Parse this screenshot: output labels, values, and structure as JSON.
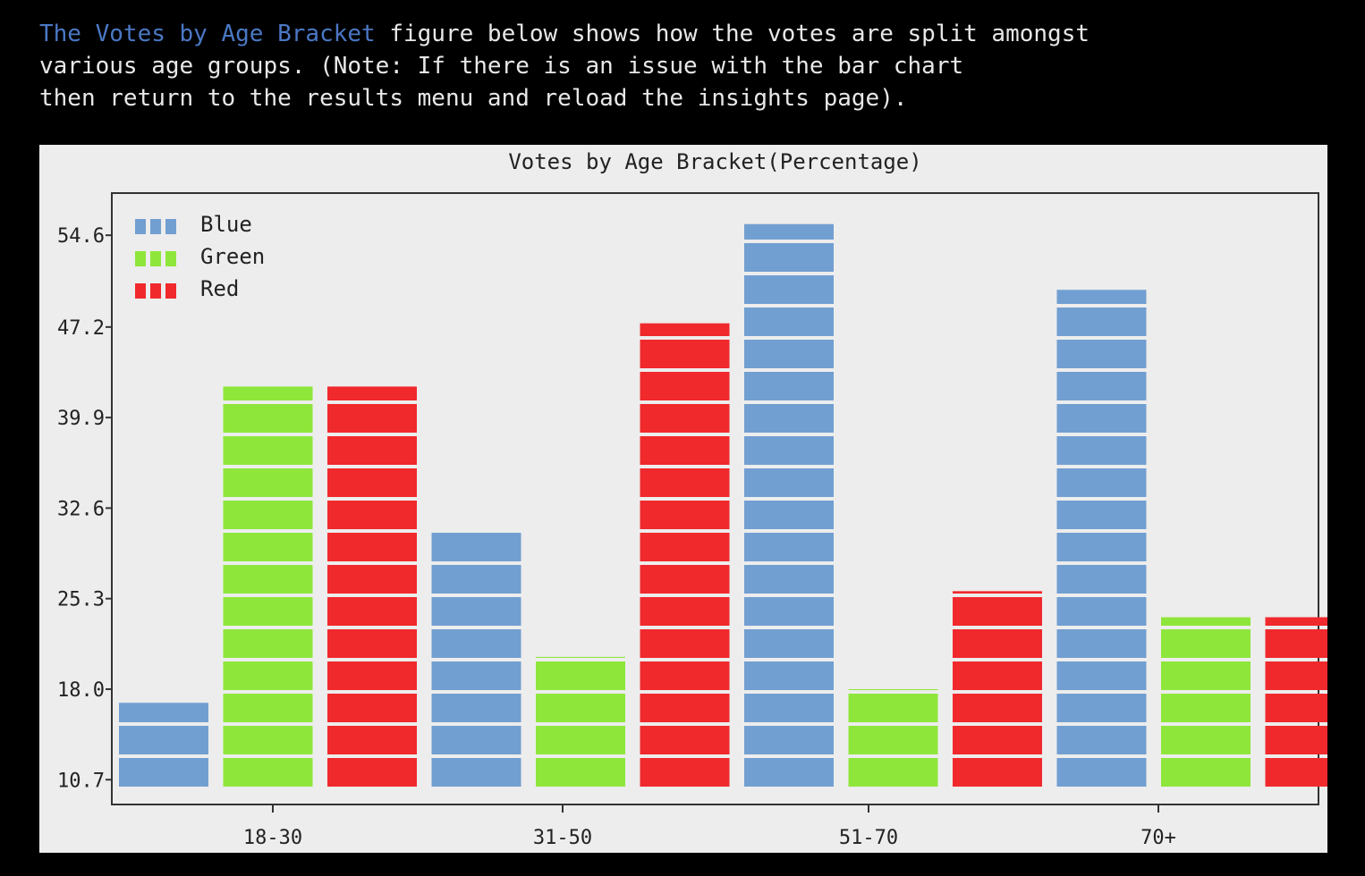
{
  "intro": {
    "link_text": "The Votes by Age Bracket",
    "line1_rest": " figure below shows how the votes are split amongst",
    "line2": "various age groups. (Note: If there is an issue with the bar chart",
    "line3": "then return to the results menu and reload the insights page)."
  },
  "chart_data": {
    "type": "bar",
    "title": "Votes by Age Bracket(Percentage)",
    "xlabel": "",
    "ylabel": "",
    "categories": [
      "18-30",
      "31-50",
      "51-70",
      "70+"
    ],
    "series": [
      {
        "name": "Blue",
        "color": "#729fd1",
        "values": [
          16.9,
          30.8,
          55.5,
          50.2
        ]
      },
      {
        "name": "Green",
        "color": "#8ee63b",
        "values": [
          42.4,
          20.6,
          18.0,
          23.8
        ]
      },
      {
        "name": "Red",
        "color": "#f0292c",
        "values": [
          42.4,
          47.5,
          25.9,
          23.8
        ]
      }
    ],
    "bar_order": [
      [
        "Blue",
        "Green",
        "Red"
      ],
      [
        "Blue",
        "Green",
        "Red"
      ],
      [
        "Blue",
        "Green",
        "Red"
      ],
      [
        "Blue",
        "Green",
        "Red"
      ]
    ],
    "yticks": [
      "10.7",
      "18.0",
      "25.3",
      "32.6",
      "39.9",
      "47.2",
      "54.6"
    ],
    "ylim": [
      8.7,
      58
    ],
    "legend": "top-left",
    "grid": false
  }
}
